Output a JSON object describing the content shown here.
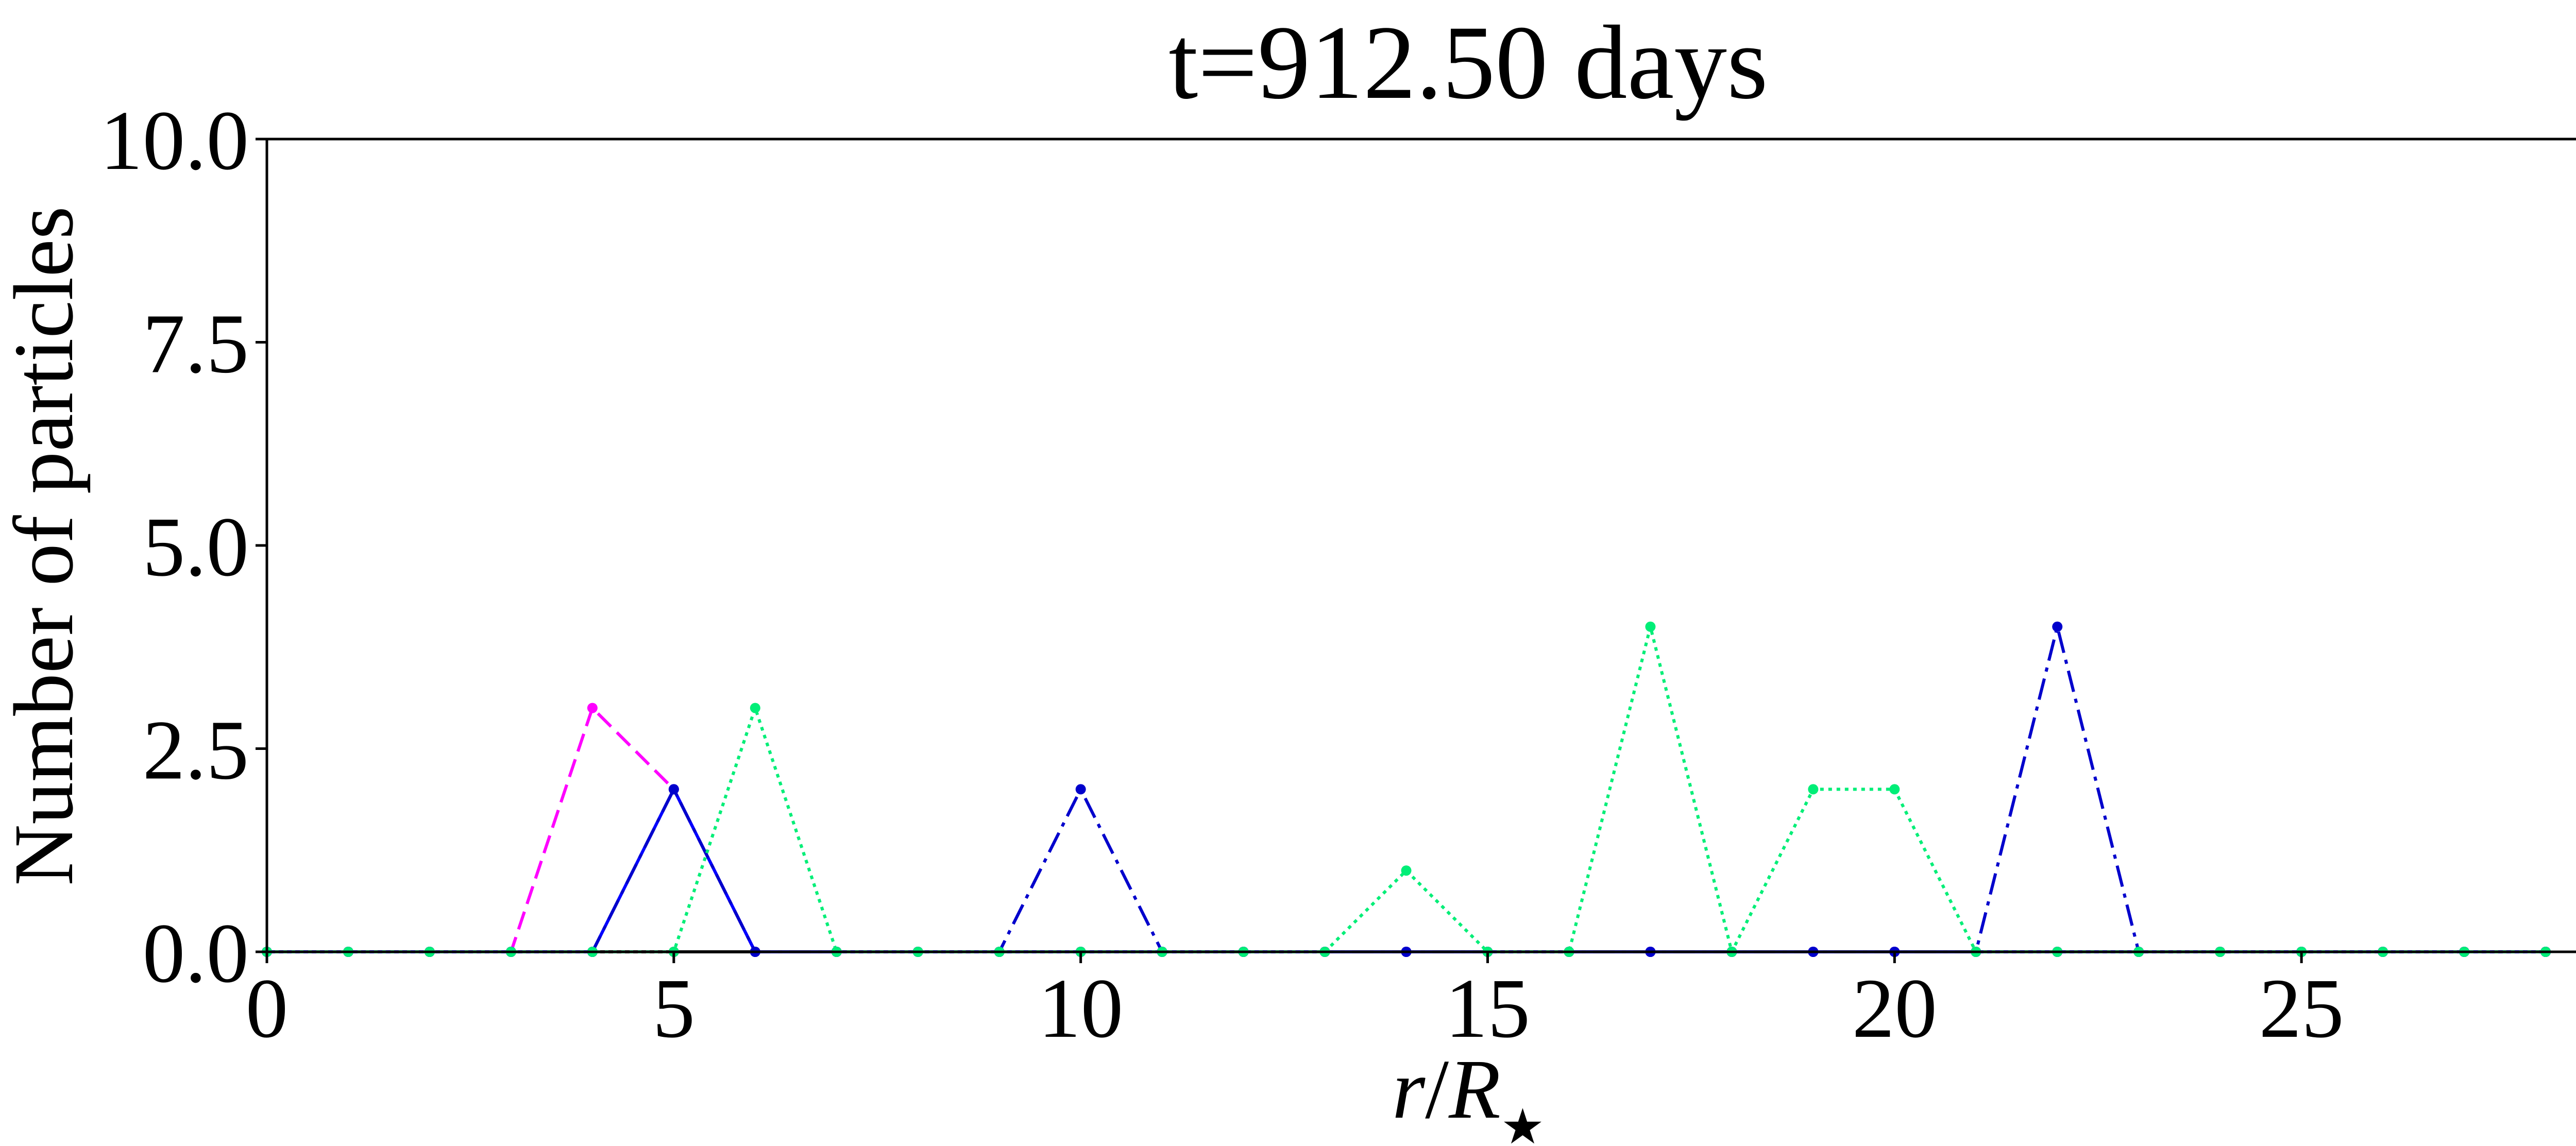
{
  "chart_data": {
    "type": "line",
    "title": "t=912.50 days",
    "xlabel_parts": {
      "r": "r",
      "slash": "/",
      "R": "R",
      "star": "★"
    },
    "ylabel": "Number of particles",
    "xlim": [
      0,
      29.5
    ],
    "ylim": [
      0,
      10
    ],
    "xticks": [
      0,
      5,
      10,
      15,
      20,
      25
    ],
    "xtick_labels": [
      "0",
      "5",
      "10",
      "15",
      "20",
      "25"
    ],
    "yticks": [
      0,
      2.5,
      5,
      7.5,
      10
    ],
    "ytick_labels": [
      "0.0",
      "2.5",
      "5.0",
      "7.5",
      "10.0"
    ],
    "grid": false,
    "x": [
      0,
      1,
      2,
      3,
      4,
      5,
      6,
      7,
      8,
      9,
      10,
      11,
      12,
      13,
      14,
      15,
      16,
      17,
      18,
      19,
      20,
      21,
      22,
      23,
      24,
      25,
      26,
      27,
      28
    ],
    "series": [
      {
        "color": "#000000",
        "style": "solid",
        "values": [
          0,
          0,
          0,
          0,
          0,
          0,
          0,
          0,
          0,
          0,
          0,
          0,
          0,
          0,
          0,
          0,
          0,
          0,
          0,
          0,
          0,
          0,
          0,
          0,
          0,
          0,
          0,
          0,
          0
        ]
      },
      {
        "color": "#ff00ff",
        "style": "dashed",
        "values": [
          0,
          0,
          0,
          0,
          3,
          2,
          0,
          0,
          0,
          0,
          0,
          0,
          0,
          0,
          0,
          0,
          0,
          0,
          0,
          0,
          0,
          0,
          0,
          0,
          0,
          0,
          0,
          0,
          0
        ]
      },
      {
        "color": "#0000ff",
        "style": "solid",
        "values": [
          0,
          0,
          0,
          0,
          0,
          2,
          0,
          0,
          0,
          0,
          0,
          0,
          0,
          0,
          0,
          0,
          0,
          0,
          0,
          0,
          0,
          0,
          0,
          0,
          0,
          0,
          0,
          0,
          0
        ]
      },
      {
        "color": "#0000cc",
        "style": "dashdot",
        "values": [
          0,
          0,
          0,
          0,
          0,
          2,
          0,
          0,
          0,
          0,
          2,
          0,
          0,
          0,
          0,
          0,
          0,
          0,
          0,
          0,
          0,
          0,
          4,
          0,
          0,
          0,
          0,
          0,
          0
        ]
      },
      {
        "color": "#00ee77",
        "style": "dotted",
        "values": [
          0,
          0,
          0,
          0,
          0,
          0,
          3,
          0,
          0,
          0,
          0,
          0,
          0,
          0,
          1,
          0,
          0,
          4,
          0,
          2,
          2,
          0,
          0,
          0,
          0,
          0,
          0,
          0,
          0
        ]
      }
    ]
  }
}
